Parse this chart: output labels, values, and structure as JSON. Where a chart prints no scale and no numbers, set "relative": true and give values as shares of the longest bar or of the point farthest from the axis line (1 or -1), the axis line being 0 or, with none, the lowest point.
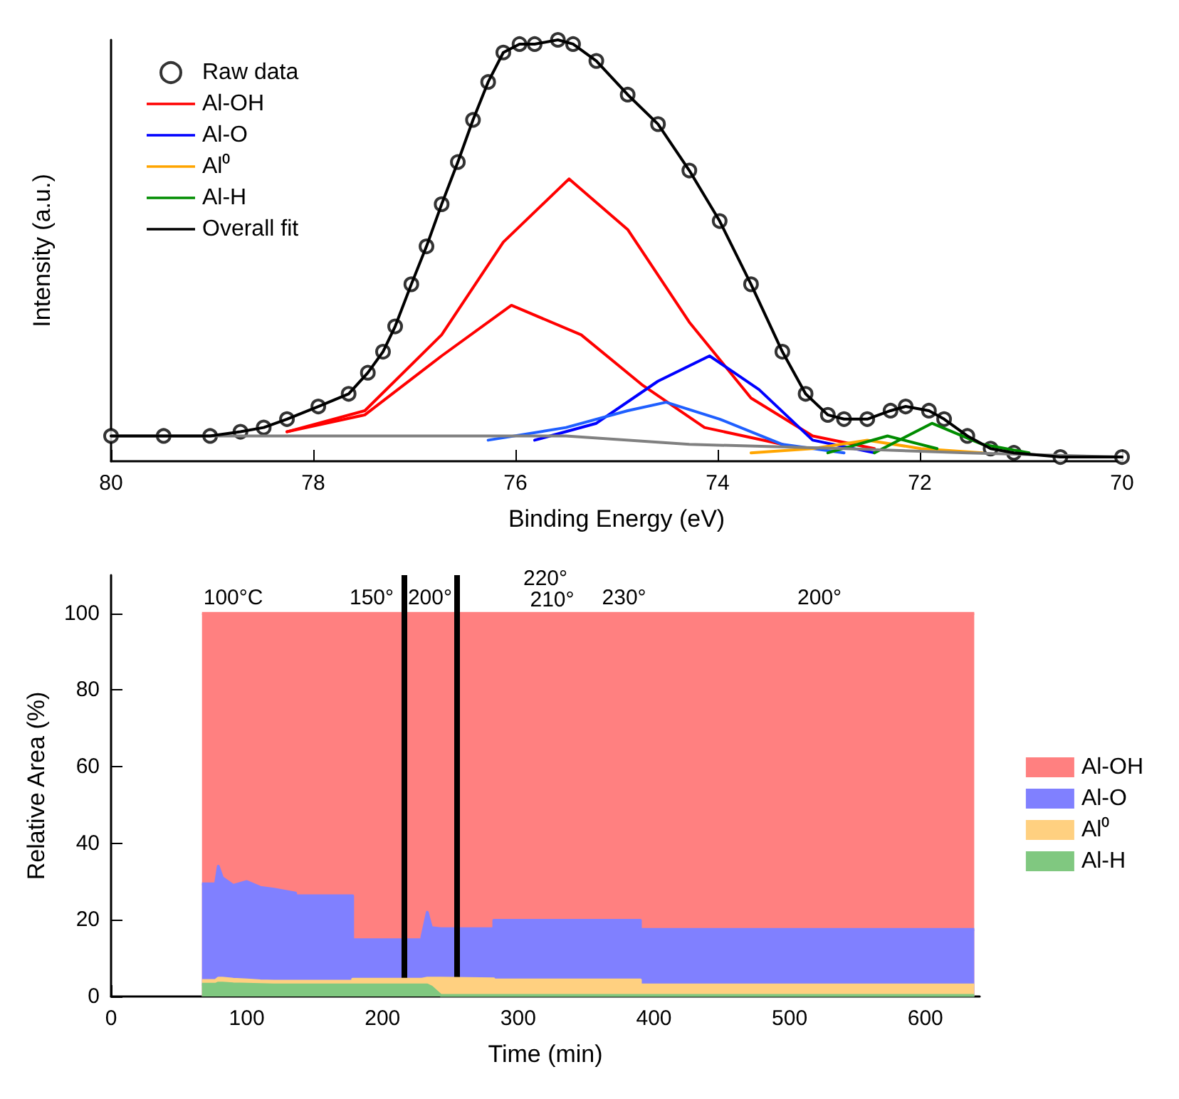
{
  "chart_data": [
    {
      "type": "line",
      "xlabel": "Binding Energy (eV)",
      "ylabel": "Intensity (a.u.)",
      "relative": true,
      "xlim": [
        80,
        70
      ],
      "xticks": [
        80,
        78,
        76,
        74,
        72,
        70
      ],
      "grid": false,
      "legend": "top left",
      "marker": "none",
      "series": [
        {
          "name": "Raw data",
          "type": "scatter",
          "marker": "circle",
          "color": "#000000",
          "x": [
            80.0,
            79.48,
            79.02,
            78.72,
            78.49,
            78.26,
            77.95,
            77.65,
            77.46,
            77.31,
            77.19,
            77.03,
            76.88,
            76.73,
            76.57,
            76.42,
            76.27,
            76.12,
            75.96,
            75.81,
            75.58,
            75.43,
            75.2,
            74.89,
            74.59,
            74.28,
            73.98,
            73.67,
            73.36,
            73.13,
            72.91,
            72.75,
            72.52,
            72.29,
            72.14,
            71.91,
            71.76,
            71.53,
            71.3,
            71.07,
            70.61,
            70.0
          ],
          "values": [
            0.06,
            0.06,
            0.06,
            0.07,
            0.08,
            0.1,
            0.13,
            0.16,
            0.21,
            0.26,
            0.32,
            0.42,
            0.51,
            0.61,
            0.71,
            0.81,
            0.9,
            0.97,
            0.99,
            0.99,
            1.0,
            0.99,
            0.95,
            0.87,
            0.8,
            0.69,
            0.57,
            0.42,
            0.26,
            0.16,
            0.11,
            0.1,
            0.1,
            0.12,
            0.13,
            0.12,
            0.1,
            0.06,
            0.03,
            0.02,
            0.01,
            0.01
          ]
        },
        {
          "name": "Al-OH",
          "color": "#ff0000",
          "x": [
            78.26,
            77.49,
            76.73,
            76.12,
            75.47,
            74.89,
            74.28,
            73.67,
            73.06,
            72.45
          ],
          "values": [
            0.07,
            0.12,
            0.3,
            0.52,
            0.67,
            0.55,
            0.33,
            0.15,
            0.06,
            0.03
          ]
        },
        {
          "color": "#ff0000",
          "x": [
            78.26,
            77.49,
            76.73,
            76.04,
            75.35,
            74.74,
            74.13,
            73.36
          ],
          "values": [
            0.07,
            0.11,
            0.25,
            0.37,
            0.3,
            0.18,
            0.08,
            0.04
          ]
        },
        {
          "name": "Al-O",
          "color": "#0000ff",
          "x": [
            75.81,
            75.2,
            74.59,
            74.08,
            73.59,
            73.06,
            72.45
          ],
          "values": [
            0.05,
            0.09,
            0.19,
            0.25,
            0.17,
            0.05,
            0.02
          ]
        },
        {
          "color": "#1f5fff",
          "x": [
            76.27,
            75.5,
            74.89,
            74.51,
            73.98,
            73.36,
            72.75
          ],
          "values": [
            0.05,
            0.08,
            0.12,
            0.14,
            0.1,
            0.04,
            0.02
          ]
        },
        {
          "name": "Al⁰",
          "color": "#ffa500",
          "x": [
            73.67,
            73.06,
            72.52,
            71.99,
            71.38
          ],
          "values": [
            0.02,
            0.03,
            0.05,
            0.03,
            0.02
          ]
        },
        {
          "name": "Al-H",
          "color": "#008c00",
          "x": [
            72.91,
            72.32,
            71.83
          ],
          "values": [
            0.02,
            0.06,
            0.03
          ]
        },
        {
          "color": "#008c00",
          "x": [
            72.45,
            71.88,
            71.38,
            70.92
          ],
          "values": [
            0.02,
            0.09,
            0.04,
            0.02
          ]
        },
        {
          "color": "#808080",
          "x": [
            80.0,
            76.73,
            75.5,
            74.28,
            72.75,
            71.53,
            70.0
          ],
          "values": [
            0.06,
            0.06,
            0.06,
            0.04,
            0.03,
            0.02,
            0.01
          ]
        },
        {
          "name": "Overall fit",
          "color": "#000000",
          "x": [
            80.0,
            79.48,
            79.02,
            78.72,
            78.49,
            78.26,
            77.95,
            77.65,
            77.46,
            77.31,
            77.19,
            77.03,
            76.88,
            76.73,
            76.57,
            76.42,
            76.27,
            76.12,
            75.96,
            75.81,
            75.58,
            75.43,
            75.2,
            74.89,
            74.59,
            74.28,
            73.98,
            73.67,
            73.36,
            73.13,
            72.91,
            72.75,
            72.52,
            72.29,
            72.14,
            71.91,
            71.76,
            71.53,
            71.3,
            71.07,
            70.61,
            70.0
          ],
          "values": [
            0.06,
            0.06,
            0.06,
            0.07,
            0.08,
            0.1,
            0.13,
            0.16,
            0.21,
            0.26,
            0.32,
            0.42,
            0.51,
            0.61,
            0.71,
            0.81,
            0.9,
            0.97,
            0.99,
            0.99,
            1.0,
            0.99,
            0.95,
            0.87,
            0.8,
            0.69,
            0.57,
            0.42,
            0.26,
            0.16,
            0.11,
            0.1,
            0.1,
            0.12,
            0.13,
            0.12,
            0.1,
            0.06,
            0.03,
            0.02,
            0.01,
            0.01
          ]
        }
      ]
    },
    {
      "type": "area",
      "stacked": true,
      "xlabel": "Time (min)",
      "ylabel": "Relative Area (%)",
      "xlim": [
        0,
        640
      ],
      "xticks": [
        0,
        100,
        200,
        300,
        400,
        500,
        600
      ],
      "ylim": [
        0,
        110
      ],
      "yticks": [
        0,
        20,
        40,
        60,
        80,
        100
      ],
      "grid": false,
      "legend": "right",
      "x": [
        67,
        77,
        79,
        82,
        90,
        100,
        110,
        120,
        136,
        136,
        178,
        178,
        229,
        229,
        233,
        236,
        243,
        243,
        282,
        282,
        390,
        390,
        636
      ],
      "series": [
        {
          "name": "Al-H",
          "color": "#80c880",
          "values": [
            3.2,
            3.2,
            3.5,
            3.5,
            3.3,
            3.2,
            3.1,
            3.0,
            3.0,
            3.0,
            3.0,
            3.0,
            3.0,
            3.0,
            3.0,
            2.5,
            0.3,
            0.3,
            0.3,
            0.3,
            0.3,
            0.3,
            0.3
          ]
        },
        {
          "name": "Al⁰",
          "color": "#ffd080",
          "values": [
            1.0,
            1.0,
            1.3,
            1.3,
            1.2,
            1.1,
            1.0,
            1.0,
            1.0,
            1.0,
            1.0,
            1.5,
            1.5,
            1.5,
            1.8,
            2.3,
            4.5,
            4.3,
            4.3,
            4.0,
            4.0,
            2.7,
            2.7
          ]
        },
        {
          "name": "Al-O",
          "color": "#8080ff",
          "values": [
            25.2,
            25.2,
            29.2,
            26.2,
            24.5,
            25.7,
            24.4,
            24.0,
            23.0,
            22.3,
            22.3,
            10.3,
            10.3,
            11.0,
            17.2,
            13.2,
            12.9,
            13.1,
            13.1,
            15.6,
            15.6,
            14.5,
            14.5
          ]
        },
        {
          "name": "Al-OH",
          "color": "#ff8080",
          "values": [
            70.6,
            70.6,
            66.0,
            69.0,
            71.0,
            70.0,
            71.5,
            72.0,
            73.0,
            73.7,
            73.7,
            85.2,
            85.2,
            84.5,
            78.0,
            82.0,
            82.3,
            82.3,
            82.3,
            80.1,
            80.1,
            82.5,
            82.5
          ]
        }
      ],
      "ref_lines": [
        {
          "axis": "x",
          "value": 216,
          "color": "#000000"
        },
        {
          "axis": "x",
          "value": 255,
          "color": "#000000"
        }
      ],
      "annotations": [
        {
          "text": "100°C",
          "x": 90,
          "y": 104
        },
        {
          "text": "150°",
          "x": 192,
          "y": 104
        },
        {
          "text": "200°",
          "x": 235,
          "y": 104
        },
        {
          "text": "220°",
          "x": 320,
          "y": 109
        },
        {
          "text": "210°",
          "x": 325,
          "y": 103.5
        },
        {
          "text": "230°",
          "x": 378,
          "y": 104
        },
        {
          "text": "200°",
          "x": 522,
          "y": 104
        }
      ]
    }
  ]
}
